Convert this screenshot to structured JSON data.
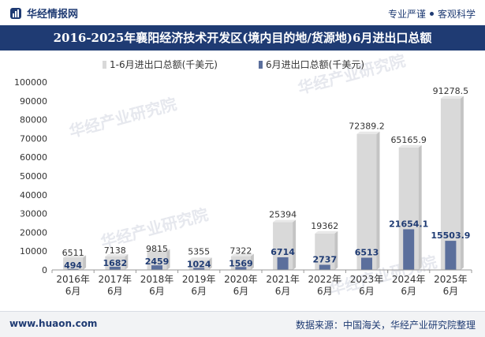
{
  "header": {
    "brand": "华经情报网",
    "tag1": "专业严谨",
    "tag2": "客观科学"
  },
  "footer": {
    "site": "www.huaon.com",
    "source": "数据来源：中国海关，华经产业研究院整理"
  },
  "watermark": "华经产业研究院",
  "colors": {
    "title_bg": "#1f3b73",
    "series1": "#d9d9d9",
    "series2": "#5b6f9c"
  },
  "chart_data": {
    "type": "bar",
    "title": "2016-2025年襄阳经济技术开发区(境内目的地/货源地)6月进出口总额",
    "categories": [
      "2016年\n6月",
      "2017年\n6月",
      "2018年\n6月",
      "2019年\n6月",
      "2020年\n6月",
      "2021年\n6月",
      "2022年\n6月",
      "2023年\n6月",
      "2024年\n6月",
      "2025年\n6月"
    ],
    "series": [
      {
        "name": "1-6月进出口总额(千美元)",
        "values": [
          6511,
          7138,
          9815,
          5355,
          7322,
          25394,
          19362,
          72389.2,
          65165.9,
          91278.5
        ]
      },
      {
        "name": "6月进出口总额(千美元)",
        "values": [
          494,
          1682,
          2459,
          1024,
          1569,
          6714,
          2737,
          6513,
          21654.1,
          15503.9
        ]
      }
    ],
    "value_labels": {
      "series1": [
        "6511",
        "7138",
        "9815",
        "5355",
        "7322",
        "25394",
        "19362",
        "72389.2",
        "65165.9",
        "91278.5"
      ],
      "series2": [
        "494",
        "1682",
        "2459",
        "1024",
        "1569",
        "6714",
        "2737",
        "6513",
        "21654.1",
        "15503.9"
      ]
    },
    "ylim": [
      0,
      100000
    ],
    "yticks": [
      0,
      10000,
      20000,
      30000,
      40000,
      50000,
      60000,
      70000,
      80000,
      90000,
      100000
    ],
    "legend": "top-center",
    "grid": false
  }
}
